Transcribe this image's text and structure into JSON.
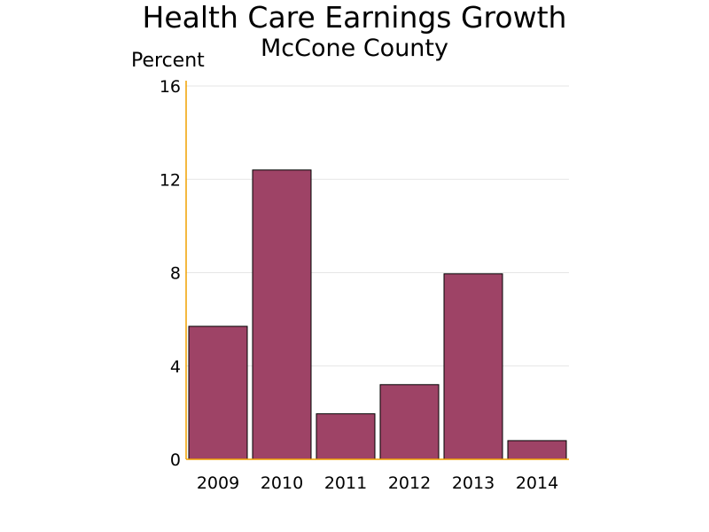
{
  "chart_data": {
    "type": "bar",
    "title": "Health Care Earnings Growth",
    "subtitle": "McCone County",
    "ylabel": "Percent",
    "xlabel": "",
    "categories": [
      "2009",
      "2010",
      "2011",
      "2012",
      "2013",
      "2014"
    ],
    "values": [
      5.7,
      12.4,
      1.95,
      3.2,
      7.95,
      0.8
    ],
    "ylim": [
      0,
      16
    ],
    "yticks": [
      0,
      4,
      8,
      12,
      16
    ],
    "grid": true,
    "legend": "none",
    "colors": {
      "bar": "#9E4366",
      "bar_edge": "#000000",
      "axis": "#F0A000",
      "grid": "#e6e6e6"
    }
  }
}
